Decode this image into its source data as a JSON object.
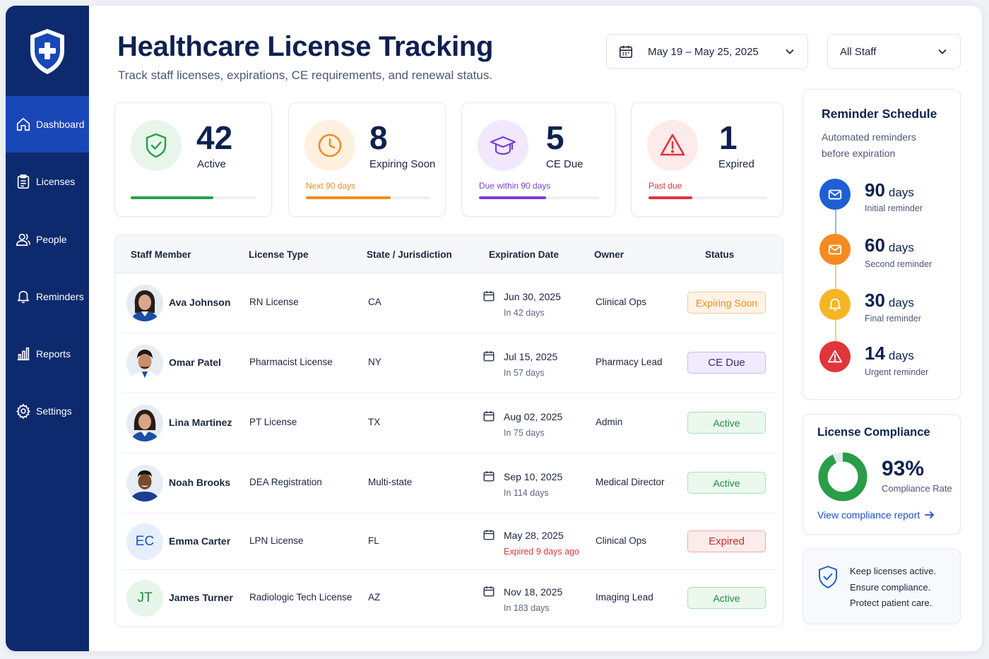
{
  "app": {
    "title": "Healthcare License Tracking",
    "subtitle": "Track staff licenses, expirations, CE requirements, and renewal status."
  },
  "sidebar": {
    "items": [
      {
        "label": "Dashboard",
        "icon": "home-icon",
        "active": true
      },
      {
        "label": "Licenses",
        "icon": "clipboard-icon",
        "active": false
      },
      {
        "label": "People",
        "icon": "people-icon",
        "active": false
      },
      {
        "label": "Reminders",
        "icon": "bell-icon",
        "active": false
      },
      {
        "label": "Reports",
        "icon": "bar-chart-icon",
        "active": false
      },
      {
        "label": "Settings",
        "icon": "gear-icon",
        "active": false
      }
    ]
  },
  "filters": {
    "date_range": "May 19 – May 25, 2025",
    "staff": "All Staff"
  },
  "stats": [
    {
      "value": "42",
      "label": "Active",
      "note": "",
      "icon": "shield-check-icon",
      "color": "#2a9d49",
      "progress": 0.66
    },
    {
      "value": "8",
      "label": "Expiring Soon",
      "note": "Next 90 days",
      "icon": "clock-icon",
      "color": "#f68b1f",
      "progress": 0.68
    },
    {
      "value": "5",
      "label": "CE Due",
      "note": "Due within 90 days",
      "icon": "graduation-cap-icon",
      "color": "#7b3fd0",
      "progress": 0.56
    },
    {
      "value": "1",
      "label": "Expired",
      "note": "Past due",
      "icon": "warning-icon",
      "color": "#e0353a",
      "progress": 0.37
    }
  ],
  "table": {
    "headers": [
      "Staff Member",
      "License Type",
      "State / Jurisdiction",
      "Expiration Date",
      "Owner",
      "Status"
    ],
    "rows": [
      {
        "name": "Ava Johnson",
        "license": "RN License",
        "state": "CA",
        "date": "Jun 30, 2025",
        "relative": "In 42 days",
        "owner": "Clinical Ops",
        "status": "Expiring Soon",
        "avatar": "photo"
      },
      {
        "name": "Omar Patel",
        "license": "Pharmacist License",
        "state": "NY",
        "date": "Jul 15, 2025",
        "relative": "In 57 days",
        "owner": "Pharmacy Lead",
        "status": "CE Due",
        "avatar": "photo"
      },
      {
        "name": "Lina Martinez",
        "license": "PT License",
        "state": "TX",
        "date": "Aug 02, 2025",
        "relative": "In 75 days",
        "owner": "Admin",
        "status": "Active",
        "avatar": "photo"
      },
      {
        "name": "Noah Brooks",
        "license": "DEA Registration",
        "state": "Multi-state",
        "date": "Sep 10, 2025",
        "relative": "In 114 days",
        "owner": "Medical Director",
        "status": "Active",
        "avatar": "photo"
      },
      {
        "name": "Emma Carter",
        "license": "LPN License",
        "state": "FL",
        "date": "May 28, 2025",
        "relative": "Expired 9 days ago",
        "owner": "Clinical Ops",
        "status": "Expired",
        "avatar": "EC"
      },
      {
        "name": "James Turner",
        "license": "Radiologic Tech License",
        "state": "AZ",
        "date": "Nov 18, 2025",
        "relative": "In 183 days",
        "owner": "Imaging Lead",
        "status": "Active",
        "avatar": "JT"
      }
    ]
  },
  "reminders": {
    "title": "Reminder Schedule",
    "subtitle": "Automated reminders before expiration",
    "steps": [
      {
        "days": "90",
        "unit": "days",
        "note": "Initial reminder",
        "icon": "mail-icon",
        "color": "#1f5fd6"
      },
      {
        "days": "60",
        "unit": "days",
        "note": "Second reminder",
        "icon": "mail-icon",
        "color": "#f68b1f"
      },
      {
        "days": "30",
        "unit": "days",
        "note": "Final reminder",
        "icon": "bell-icon",
        "color": "#f6b623"
      },
      {
        "days": "14",
        "unit": "days",
        "note": "Urgent reminder",
        "icon": "warning-icon",
        "color": "#e0353a"
      }
    ]
  },
  "compliance": {
    "title": "License Compliance",
    "value": "93%",
    "label": "Compliance Rate",
    "rate": 0.93,
    "link": "View compliance report"
  },
  "message": {
    "line1": "Keep licenses active.",
    "line2": "Ensure compliance.",
    "line3": "Protect patient care."
  }
}
